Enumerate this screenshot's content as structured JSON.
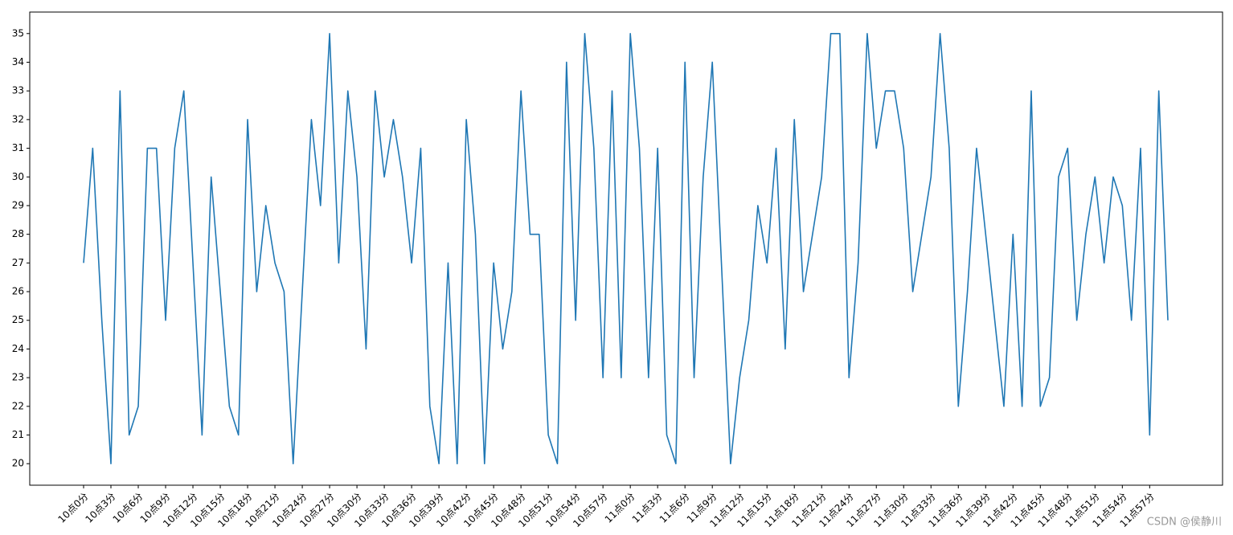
{
  "chart_data": {
    "type": "line",
    "categories": [
      "10点0分",
      null,
      null,
      "10点3分",
      null,
      null,
      "10点6分",
      null,
      null,
      "10点9分",
      null,
      null,
      "10点12分",
      null,
      null,
      "10点15分",
      null,
      null,
      "10点18分",
      null,
      null,
      "10点21分",
      null,
      null,
      "10点24分",
      null,
      null,
      "10点27分",
      null,
      null,
      "10点30分",
      null,
      null,
      "10点33分",
      null,
      null,
      "10点36分",
      null,
      null,
      "10点39分",
      null,
      null,
      "10点42分",
      null,
      null,
      "10点45分",
      null,
      null,
      "10点48分",
      null,
      null,
      "10点51分",
      null,
      null,
      "10点54分",
      null,
      null,
      "10点57分",
      null,
      null,
      "11点0分",
      null,
      null,
      "11点3分",
      null,
      null,
      "11点6分",
      null,
      null,
      "11点9分",
      null,
      null,
      "11点12分",
      null,
      null,
      "11点15分",
      null,
      null,
      "11点18分",
      null,
      null,
      "11点21分",
      null,
      null,
      "11点24分",
      null,
      null,
      "11点27分",
      null,
      null,
      "11点30分",
      null,
      null,
      "11点33分",
      null,
      null,
      "11点36分",
      null,
      null,
      "11点39分",
      null,
      null,
      "11点42分",
      null,
      null,
      "11点45分",
      null,
      null,
      "11点48分",
      null,
      null,
      "11点51分",
      null,
      null,
      "11点54分",
      null,
      null,
      "11点57分",
      null,
      null
    ],
    "values": [
      27,
      31,
      25,
      20,
      33,
      21,
      22,
      31,
      31,
      25,
      31,
      33,
      27,
      21,
      30,
      26,
      22,
      21,
      32,
      26,
      29,
      27,
      26,
      20,
      26,
      32,
      29,
      35,
      27,
      33,
      30,
      24,
      33,
      30,
      32,
      30,
      27,
      31,
      22,
      20,
      27,
      20,
      32,
      28,
      20,
      27,
      24,
      26,
      33,
      28,
      28,
      21,
      20,
      34,
      25,
      35,
      31,
      23,
      33,
      23,
      35,
      31,
      23,
      31,
      21,
      20,
      34,
      23,
      30,
      34,
      27,
      20,
      23,
      25,
      29,
      27,
      31,
      24,
      32,
      26,
      28,
      30,
      35,
      35,
      23,
      27,
      35,
      31,
      33,
      33,
      31,
      26,
      28,
      30,
      35,
      31,
      22,
      26,
      31,
      28,
      25,
      22,
      28,
      22,
      33,
      22,
      23,
      30,
      31,
      25,
      28,
      30,
      27,
      30,
      29,
      25,
      31,
      21,
      33,
      25
    ],
    "color": "#1f77b4",
    "ylim": [
      19.25,
      35.75
    ],
    "yticks": [
      20,
      21,
      22,
      23,
      24,
      25,
      26,
      27,
      28,
      29,
      30,
      31,
      32,
      33,
      34,
      35
    ],
    "watermark": "CSDN @侯静川"
  }
}
